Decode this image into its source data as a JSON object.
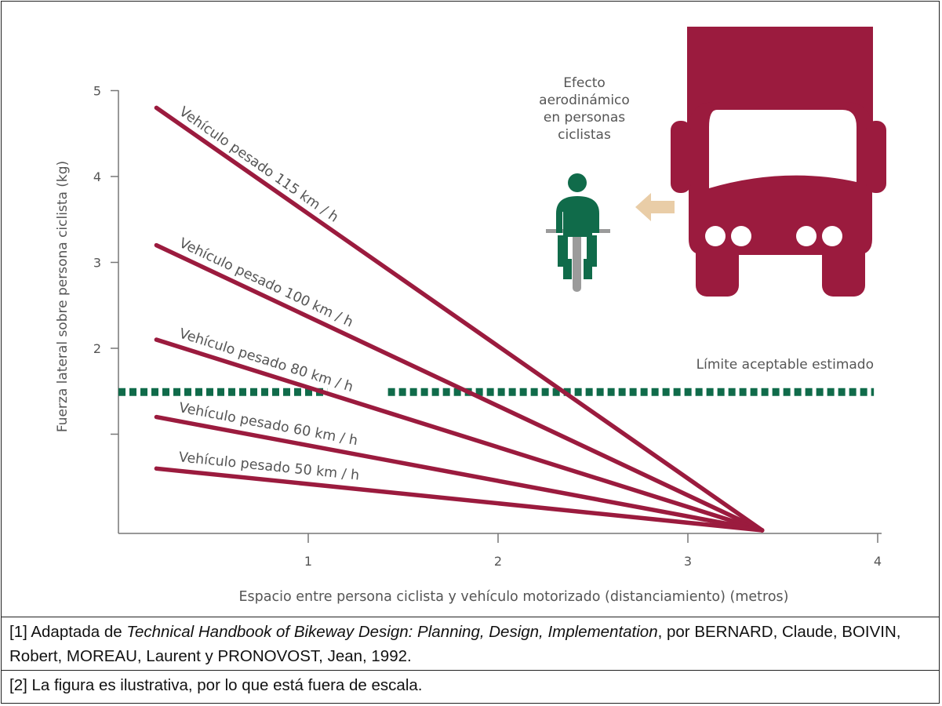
{
  "chart_data": {
    "type": "line",
    "xlabel": "Espacio entre persona ciclista y vehículo motorizado (distanciamiento) (metros)",
    "ylabel": "Fuerza lateral sobre persona ciclista (kg)",
    "x_ticks": [
      "1",
      "2",
      "3",
      "4"
    ],
    "y_ticks": [
      "2",
      "3",
      "4",
      "5"
    ],
    "xlim": [
      0,
      4
    ],
    "ylim": [
      0,
      5
    ],
    "series": [
      {
        "name": "Vehículo pesado 115 km / h",
        "points": [
          [
            0.2,
            4.8
          ],
          [
            3.35,
            0
          ]
        ]
      },
      {
        "name": "Vehículo pesado 100 km / h",
        "points": [
          [
            0.2,
            3.2
          ],
          [
            3.35,
            0
          ]
        ]
      },
      {
        "name": "Vehículo pesado 80 km / h",
        "points": [
          [
            0.2,
            2.1
          ],
          [
            3.35,
            0
          ]
        ]
      },
      {
        "name": "Vehículo pesado 60 km / h",
        "points": [
          [
            0.2,
            1.2
          ],
          [
            3.35,
            0
          ]
        ]
      },
      {
        "name": "Vehículo pesado 50 km / h",
        "points": [
          [
            0.2,
            0.6
          ],
          [
            3.35,
            0
          ]
        ]
      }
    ],
    "threshold": {
      "label": "Límite aceptable estimado",
      "y": 1.6
    },
    "annotation": "Efecto aerodinámico en personas ciclistas",
    "colors": {
      "lines": "#9b1b3e",
      "threshold": "#106b4a",
      "truck": "#9b1b3e",
      "cyclist": "#106b4a",
      "arrow": "#e9cda7"
    }
  },
  "notes": {
    "n1_prefix": "[1] Adaptada de ",
    "n1_title": "Technical Handbook of Bikeway Design: Planning, Design, Implementation",
    "n1_suffix": ", por BERNARD, Claude, BOIVIN, Robert, MOREAU, Laurent y PRONOVOST, Jean, 1992.",
    "n2": "[2] La figura es ilustrativa, por lo que está fuera de escala."
  }
}
